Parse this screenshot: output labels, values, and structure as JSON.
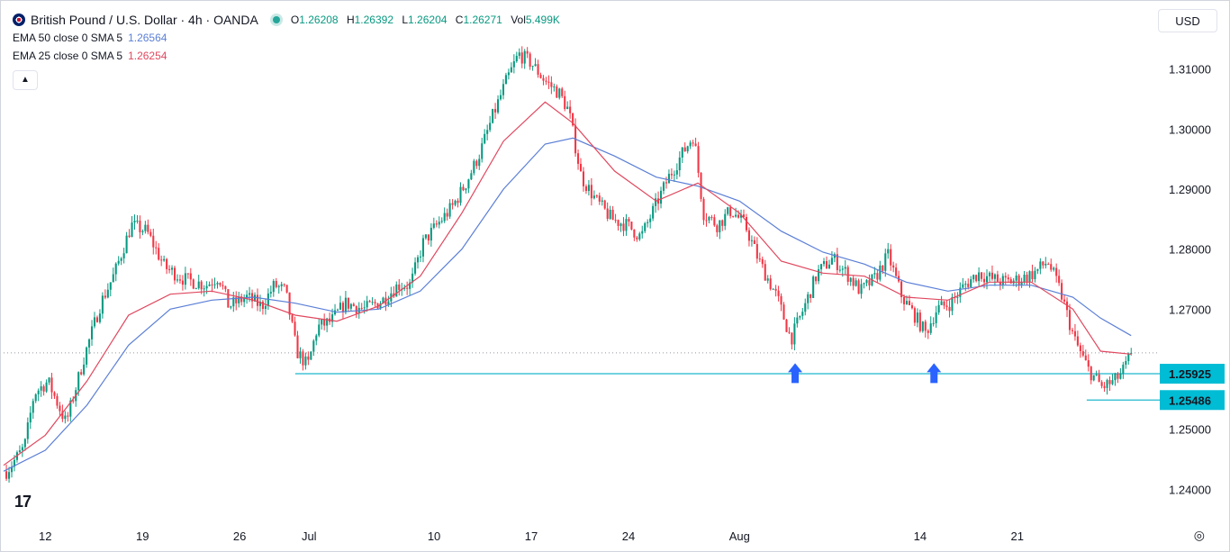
{
  "header": {
    "symbol_title": "British Pound / U.S. Dollar · 4h · OANDA",
    "open_label": "O",
    "open_value": "1.26208",
    "high_label": "H",
    "high_value": "1.26392",
    "low_label": "L",
    "low_value": "1.26204",
    "close_label": "C",
    "close_value": "1.26271",
    "vol_label": "Vol",
    "vol_value": "5.499K",
    "currency": "USD"
  },
  "indicators": [
    {
      "label": "EMA 50 close 0 SMA 5",
      "value": "1.26564",
      "color": "#5b7fd6"
    },
    {
      "label": "EMA 25 close 0 SMA 5",
      "value": "1.26254",
      "color": "#e0485f"
    }
  ],
  "icons": {
    "collapse": "chevron-up-icon",
    "logo": "tradingview-logo",
    "settings": "gear-icon",
    "flag": "uk-us-flag-icon"
  },
  "chart_data": {
    "type": "candlestick",
    "symbol": "GBPUSD",
    "timeframe": "4h",
    "ylim": [
      1.2345,
      1.3155
    ],
    "y_ticks": [
      "1.31000",
      "1.30000",
      "1.29000",
      "1.28000",
      "1.27000",
      "1.25000",
      "1.24000"
    ],
    "x_ticks": [
      {
        "label": "12",
        "x": 12
      },
      {
        "label": "19",
        "x": 19
      },
      {
        "label": "26",
        "x": 26
      },
      {
        "label": "Jul",
        "x": 31
      },
      {
        "label": "10",
        "x": 40
      },
      {
        "label": "17",
        "x": 47
      },
      {
        "label": "24",
        "x": 54
      },
      {
        "label": "Aug",
        "x": 62
      },
      {
        "label": "14",
        "x": 75
      },
      {
        "label": "21",
        "x": 82
      }
    ],
    "x_range": [
      9,
      92
    ],
    "price_path": [
      [
        9.2,
        1.243
      ],
      [
        10.5,
        1.247
      ],
      [
        11.2,
        1.256
      ],
      [
        12.2,
        1.258
      ],
      [
        13.5,
        1.251
      ],
      [
        14.8,
        1.262
      ],
      [
        16.0,
        1.271
      ],
      [
        17.0,
        1.276
      ],
      [
        18.2,
        1.284
      ],
      [
        19.3,
        1.283
      ],
      [
        20.6,
        1.277
      ],
      [
        22.0,
        1.275
      ],
      [
        23.6,
        1.274
      ],
      [
        24.5,
        1.2755
      ],
      [
        25.2,
        1.2705
      ],
      [
        26.5,
        1.272
      ],
      [
        27.6,
        1.2705
      ],
      [
        28.5,
        1.274
      ],
      [
        29.3,
        1.273
      ],
      [
        30.1,
        1.263
      ],
      [
        30.9,
        1.2605
      ],
      [
        31.6,
        1.267
      ],
      [
        32.6,
        1.268
      ],
      [
        33.6,
        1.271
      ],
      [
        35.0,
        1.27
      ],
      [
        36.3,
        1.2715
      ],
      [
        37.4,
        1.274
      ],
      [
        38.3,
        1.274
      ],
      [
        39.2,
        1.281
      ],
      [
        40.2,
        1.284
      ],
      [
        41.3,
        1.287
      ],
      [
        42.3,
        1.291
      ],
      [
        43.3,
        1.296
      ],
      [
        44.2,
        1.302
      ],
      [
        45.2,
        1.308
      ],
      [
        46.1,
        1.3125
      ],
      [
        47.0,
        1.311
      ],
      [
        48.0,
        1.308
      ],
      [
        49.0,
        1.306
      ],
      [
        49.7,
        1.303
      ],
      [
        50.6,
        1.292
      ],
      [
        51.7,
        1.288
      ],
      [
        52.8,
        1.285
      ],
      [
        53.9,
        1.284
      ],
      [
        54.9,
        1.282
      ],
      [
        55.9,
        1.287
      ],
      [
        56.9,
        1.292
      ],
      [
        57.9,
        1.296
      ],
      [
        58.7,
        1.299
      ],
      [
        59.4,
        1.286
      ],
      [
        60.4,
        1.284
      ],
      [
        61.4,
        1.2865
      ],
      [
        62.4,
        1.284
      ],
      [
        63.4,
        1.278
      ],
      [
        64.7,
        1.272
      ],
      [
        65.7,
        1.265
      ],
      [
        66.6,
        1.27
      ],
      [
        67.6,
        1.276
      ],
      [
        68.7,
        1.2785
      ],
      [
        69.7,
        1.276
      ],
      [
        70.7,
        1.273
      ],
      [
        71.7,
        1.275
      ],
      [
        72.7,
        1.279
      ],
      [
        73.7,
        1.272
      ],
      [
        74.6,
        1.269
      ],
      [
        75.4,
        1.266
      ],
      [
        76.2,
        1.27
      ],
      [
        77.2,
        1.271
      ],
      [
        78.2,
        1.274
      ],
      [
        79.2,
        1.276
      ],
      [
        80.2,
        1.275
      ],
      [
        81.2,
        1.2745
      ],
      [
        82.2,
        1.275
      ],
      [
        83.2,
        1.276
      ],
      [
        84.2,
        1.278
      ],
      [
        85.1,
        1.273
      ],
      [
        86.1,
        1.265
      ],
      [
        87.1,
        1.26
      ],
      [
        88.1,
        1.257
      ],
      [
        89.0,
        1.258
      ],
      [
        89.7,
        1.26
      ],
      [
        90.2,
        1.2627
      ]
    ],
    "series": [
      {
        "name": "EMA 50 close 0 SMA 5",
        "color": "#5b7fd6",
        "points": [
          [
            9,
            1.243
          ],
          [
            12,
            1.2465
          ],
          [
            15,
            1.254
          ],
          [
            18,
            1.264
          ],
          [
            21,
            1.27
          ],
          [
            24,
            1.2715
          ],
          [
            27,
            1.272
          ],
          [
            30,
            1.271
          ],
          [
            33,
            1.2695
          ],
          [
            36,
            1.27
          ],
          [
            39,
            1.273
          ],
          [
            42,
            1.28
          ],
          [
            45,
            1.29
          ],
          [
            48,
            1.2975
          ],
          [
            50,
            1.2985
          ],
          [
            53,
            1.2955
          ],
          [
            56,
            1.292
          ],
          [
            59,
            1.2905
          ],
          [
            62,
            1.288
          ],
          [
            65,
            1.283
          ],
          [
            68,
            1.2795
          ],
          [
            71,
            1.2775
          ],
          [
            74,
            1.2745
          ],
          [
            77,
            1.273
          ],
          [
            80,
            1.274
          ],
          [
            83,
            1.274
          ],
          [
            86,
            1.272
          ],
          [
            88,
            1.2685
          ],
          [
            90.2,
            1.2656
          ]
        ]
      },
      {
        "name": "EMA 25 close 0 SMA 5",
        "color": "#e0485f",
        "points": [
          [
            9,
            1.244
          ],
          [
            12,
            1.249
          ],
          [
            15,
            1.258
          ],
          [
            18,
            1.269
          ],
          [
            21,
            1.2725
          ],
          [
            24,
            1.273
          ],
          [
            27,
            1.2715
          ],
          [
            30,
            1.269
          ],
          [
            33,
            1.268
          ],
          [
            36,
            1.2705
          ],
          [
            39,
            1.2755
          ],
          [
            42,
            1.286
          ],
          [
            45,
            1.298
          ],
          [
            48,
            1.3045
          ],
          [
            50,
            1.301
          ],
          [
            53,
            1.293
          ],
          [
            56,
            1.288
          ],
          [
            59,
            1.291
          ],
          [
            62,
            1.286
          ],
          [
            65,
            1.278
          ],
          [
            68,
            1.276
          ],
          [
            71,
            1.2755
          ],
          [
            74,
            1.272
          ],
          [
            77,
            1.2715
          ],
          [
            80,
            1.2745
          ],
          [
            83,
            1.2745
          ],
          [
            86,
            1.27
          ],
          [
            88,
            1.263
          ],
          [
            90.2,
            1.2625
          ]
        ]
      }
    ],
    "horizontal_lines": [
      {
        "value": 1.25925,
        "label": "1.25925",
        "x_start": 30.0,
        "x_end": 94
      },
      {
        "value": 1.25486,
        "label": "1.25486",
        "x_start": 87.0,
        "x_end": 94
      }
    ],
    "current_price_line": 1.26271,
    "arrows": [
      {
        "x": 66.0,
        "value": 1.2592,
        "direction": "up"
      },
      {
        "x": 76.0,
        "value": 1.2592,
        "direction": "up"
      }
    ],
    "colors": {
      "up": "#089981",
      "down": "#f23645",
      "support": "#1fb8cd",
      "arrow": "#2962ff",
      "label_bg": "#00bcd4"
    }
  }
}
